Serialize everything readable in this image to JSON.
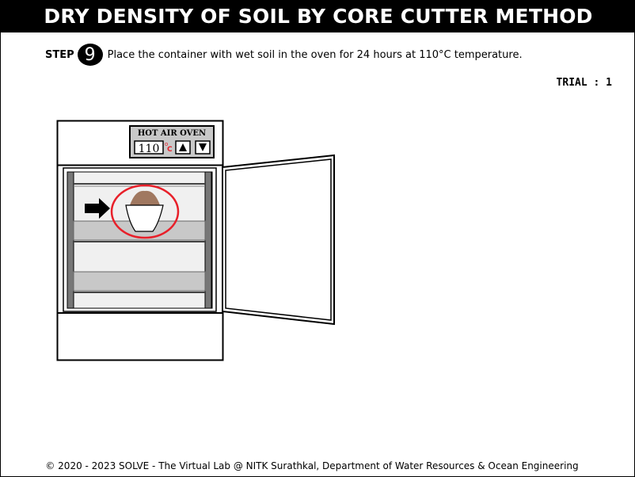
{
  "header": {
    "title": "DRY DENSITY OF SOIL BY CORE CUTTER METHOD"
  },
  "step": {
    "label": "STEP",
    "number": "9",
    "instruction": "Place the container with wet soil in the oven for 24 hours at 110°C temperature."
  },
  "trial": {
    "label": "TRIAL : 1"
  },
  "oven": {
    "panel_title": "HOT AIR OVEN",
    "temperature": "110",
    "unit_top": "o",
    "unit_bottom": "C",
    "up_symbol": "▲",
    "down_symbol": "▼"
  },
  "footer": {
    "text": "© 2020 - 2023 SOLVE - The Virtual Lab @ NITK Surathkal, Department of Water Resources & Ocean Engineering"
  },
  "colors": {
    "highlight": "#e8202a",
    "soil": "#a07860",
    "shelf": "#c8c8c8",
    "rail": "#777777"
  }
}
